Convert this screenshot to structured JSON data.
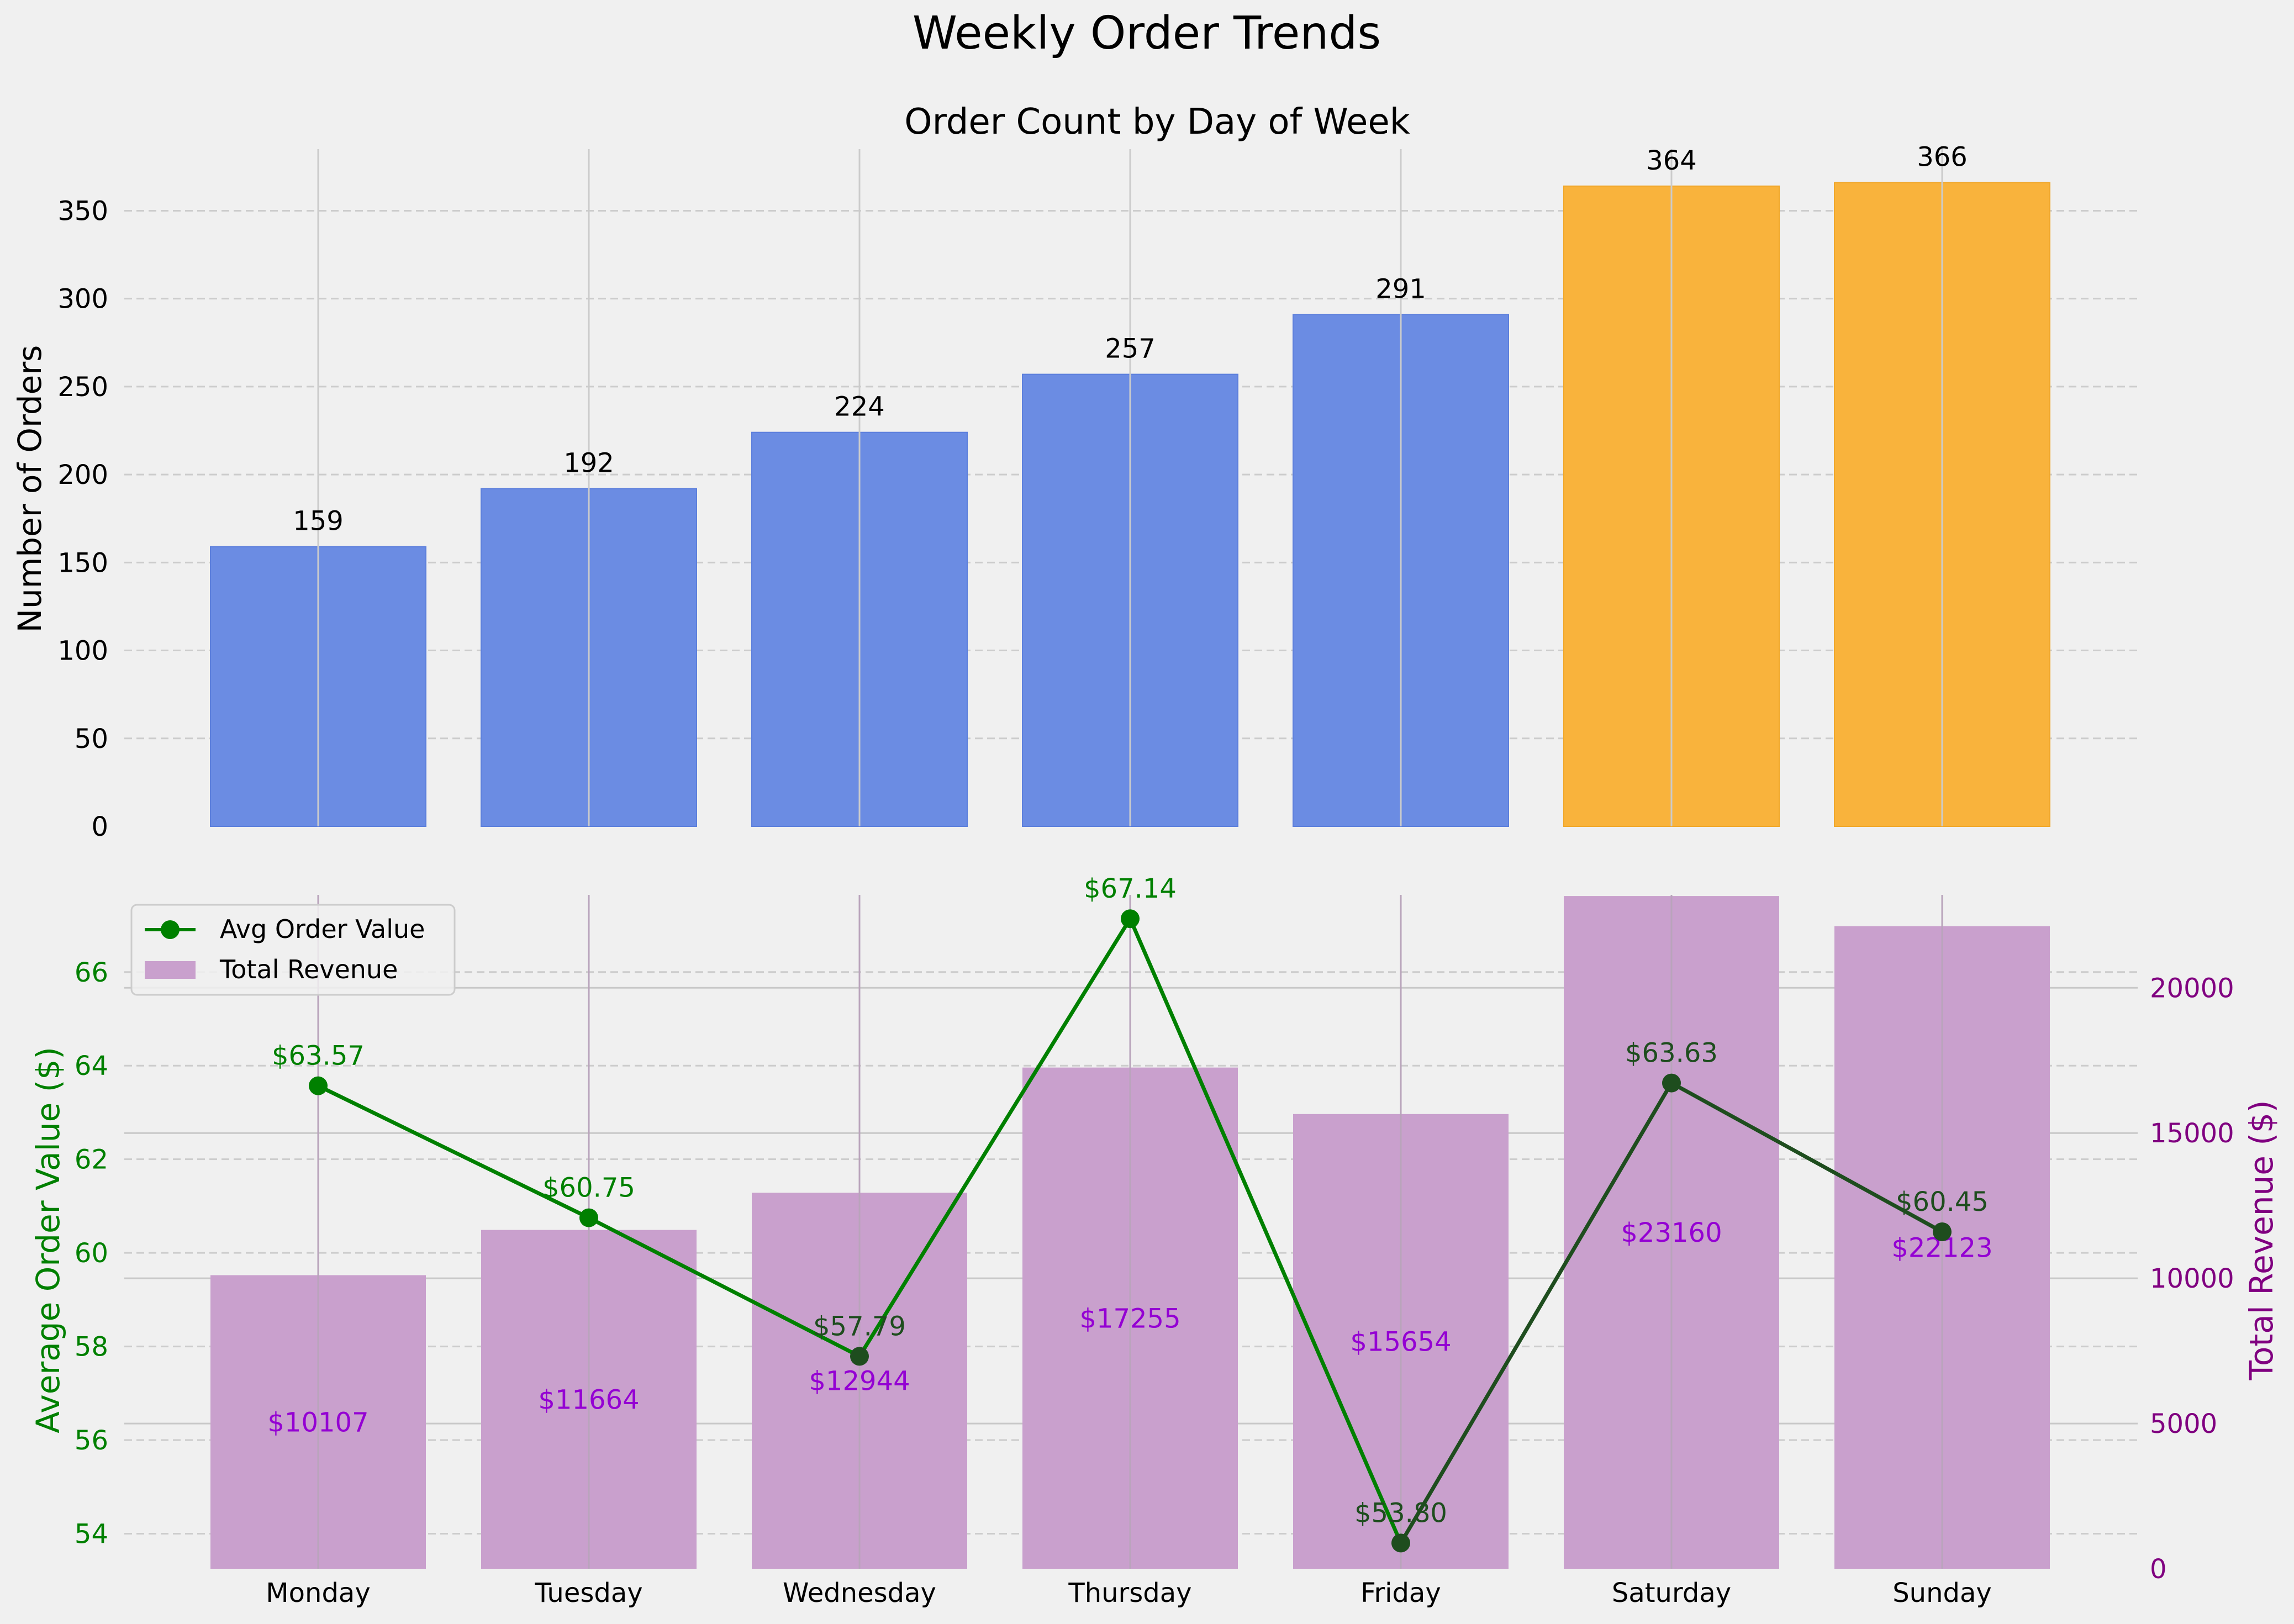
{
  "figure": {
    "suptitle": "Weekly Order Trends"
  },
  "colors": {
    "weekday_bar": "#6b8ce3",
    "weekend_bar": "#f9b33c",
    "revenue_bar": "#c9a0cd",
    "avg_line_weekday": "#008000",
    "avg_line_weekend": "#1e4d1e",
    "revenue_label": "#9400d3",
    "right_axis": "#800080",
    "background": "#f0f0f0"
  },
  "chart_data": [
    {
      "type": "bar",
      "title": "Order Count by Day of Week",
      "xlabel": "",
      "ylabel": "Number of Orders",
      "categories": [
        "Monday",
        "Tuesday",
        "Wednesday",
        "Thursday",
        "Friday",
        "Saturday",
        "Sunday"
      ],
      "values": [
        159,
        192,
        224,
        257,
        291,
        364,
        366
      ],
      "value_labels": [
        "159",
        "192",
        "224",
        "257",
        "291",
        "364",
        "366"
      ],
      "weekend": [
        false,
        false,
        false,
        false,
        false,
        true,
        true
      ],
      "ylim": [
        0,
        385
      ],
      "yticks": [
        0,
        50,
        100,
        150,
        200,
        250,
        300,
        350
      ],
      "grid": true
    },
    {
      "type": "bar+line",
      "xlabel": "",
      "categories": [
        "Monday",
        "Tuesday",
        "Wednesday",
        "Thursday",
        "Friday",
        "Saturday",
        "Sunday"
      ],
      "line": {
        "name": "Avg Order Value",
        "ylabel": "Average Order Value ($)",
        "values": [
          63.57,
          60.75,
          57.79,
          67.14,
          53.8,
          63.63,
          60.45
        ],
        "labels": [
          "$63.57",
          "$60.75",
          "$57.79",
          "$67.14",
          "$53.80",
          "$63.63",
          "$60.45"
        ],
        "ylim": [
          53.25,
          67.65
        ],
        "yticks": [
          54,
          56,
          58,
          60,
          62,
          64,
          66
        ]
      },
      "bars": {
        "name": "Total Revenue",
        "ylabel": "Total Revenue ($)",
        "values": [
          10107,
          11664,
          12944,
          17255,
          15654,
          23160,
          22123
        ],
        "labels": [
          "$10107",
          "$11664",
          "$12944",
          "$17255",
          "$15654",
          "$23160",
          "$22123"
        ],
        "ylim": [
          0,
          23200
        ],
        "yticks": [
          0,
          5000,
          10000,
          15000,
          20000
        ]
      },
      "legend": {
        "placement": "top-left",
        "entries": [
          "Avg Order Value",
          "Total Revenue"
        ]
      },
      "grid": true
    }
  ]
}
